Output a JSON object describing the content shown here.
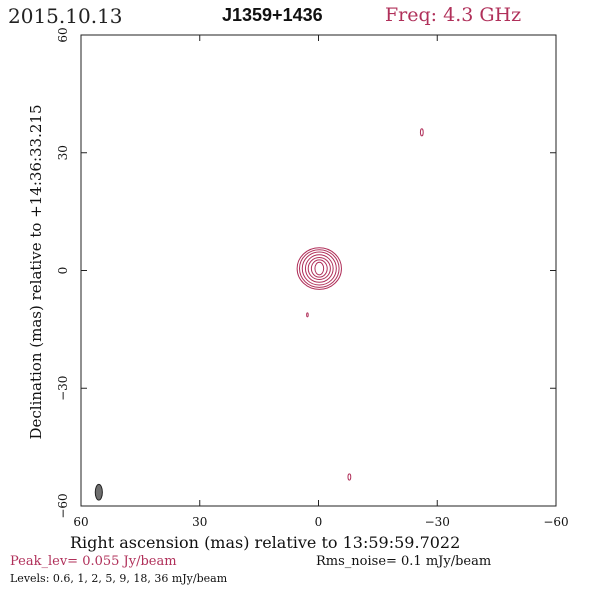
{
  "header": {
    "date": "2015.10.13",
    "source": "J1359+1436",
    "freq": "Freq: 4.3 GHz"
  },
  "footer": {
    "xlabel": "Right ascension (mas) relative to 13:59:59.7022",
    "peak": "Peak_lev=  0.055 Jy/beam",
    "rms": "Rms_noise=  0.1 mJy/beam",
    "levels": "Levels: 0.6,    1,    2,    5,    9,   18,   36 mJy/beam"
  },
  "colors": {
    "contour": "#b0305a",
    "beam": "#6e6e6e",
    "accent": "#b0305a"
  },
  "chart_data": {
    "type": "contour",
    "title": "J1359+1436",
    "xlabel": "Right ascension (mas) relative to 13:59:59.7022",
    "ylabel": "Declination (mas) relative to +14:36:33.215",
    "xlim": [
      60,
      -60
    ],
    "ylim": [
      -60,
      60
    ],
    "xticks": [
      60,
      30,
      0,
      -30,
      -60
    ],
    "yticks": [
      60,
      30,
      0,
      -30,
      -60
    ],
    "xtick_labels": [
      "60",
      "30",
      "0",
      "−30",
      "−60"
    ],
    "ytick_labels": [
      "60",
      "30",
      "0",
      "−30",
      "−60"
    ],
    "peak_level_jy_per_beam": 0.055,
    "rms_noise_mjy_per_beam": 0.1,
    "contour_levels_mjy_per_beam": [
      0.6,
      1,
      2,
      5,
      9,
      18,
      36
    ],
    "core": {
      "x": -0.2,
      "y": 0.5,
      "contours": [
        {
          "level": 0.6,
          "rx": 5.6,
          "ry": 5.3
        },
        {
          "level": 1,
          "rx": 5.0,
          "ry": 4.8
        },
        {
          "level": 2,
          "rx": 4.3,
          "ry": 4.2
        },
        {
          "level": 5,
          "rx": 3.5,
          "ry": 3.5
        },
        {
          "level": 9,
          "rx": 2.8,
          "ry": 2.8
        },
        {
          "level": 18,
          "rx": 2.0,
          "ry": 2.2
        },
        {
          "level": 36,
          "rx": 1.1,
          "ry": 1.6
        }
      ]
    },
    "spots": [
      {
        "x": -26.1,
        "y": 35.2,
        "rx": 0.35,
        "ry": 0.9
      },
      {
        "x": 2.8,
        "y": -11.3,
        "rx": 0.2,
        "ry": 0.5
      },
      {
        "x": -7.8,
        "y": -52.6,
        "rx": 0.35,
        "ry": 0.8
      }
    ],
    "beam": {
      "x": 55.5,
      "y": -56.5,
      "rx": 0.9,
      "ry": 2.0
    }
  }
}
